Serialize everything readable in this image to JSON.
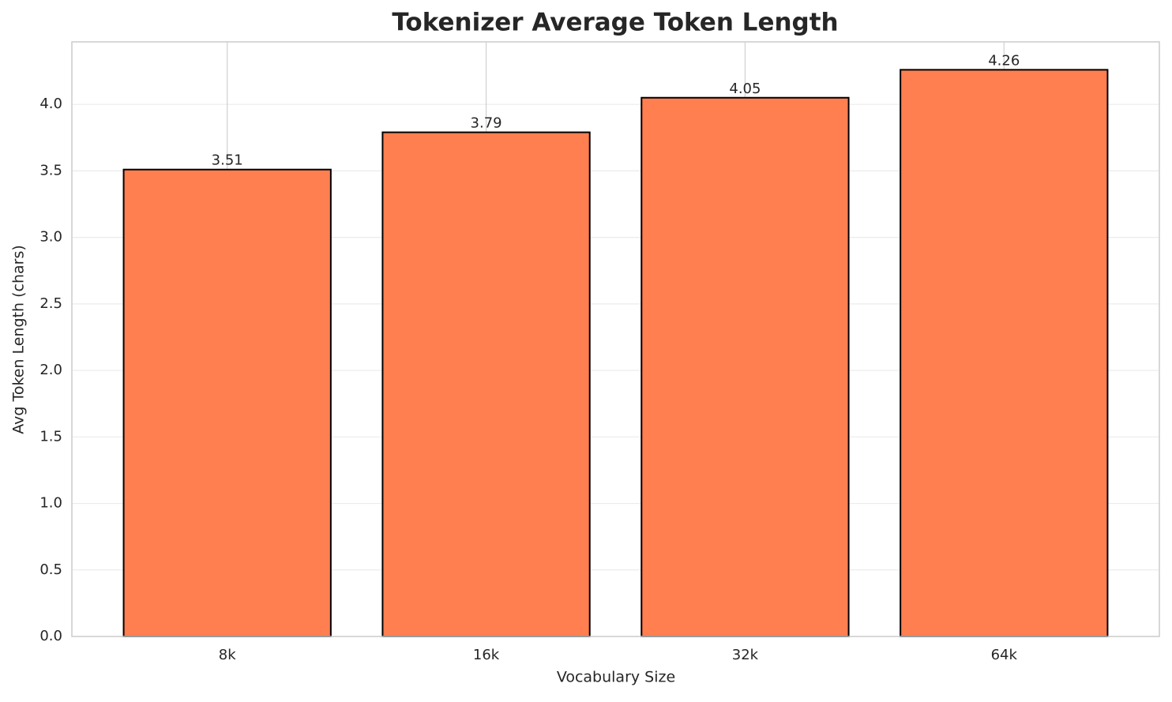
{
  "chart_data": {
    "type": "bar",
    "title": "Tokenizer Average Token Length",
    "x_label": "Vocabulary Size",
    "y_label": "Avg Token Length (chars)",
    "categories": [
      "8k",
      "16k",
      "32k",
      "64k"
    ],
    "values": [
      3.51,
      3.79,
      4.05,
      4.26
    ],
    "color": "#ff7f50",
    "edge_color": "#000000",
    "ylim": [
      0,
      4.47
    ],
    "yticks": [
      {
        "value": 0,
        "label": "0.0"
      },
      0.5,
      {
        "value": 1,
        "label": "1.0"
      },
      1.5,
      {
        "value": 2,
        "label": "2.0"
      },
      2.5,
      {
        "value": 3,
        "label": "3.0"
      },
      3.5,
      {
        "value": 4,
        "label": "4.0"
      }
    ],
    "grid": true
  }
}
